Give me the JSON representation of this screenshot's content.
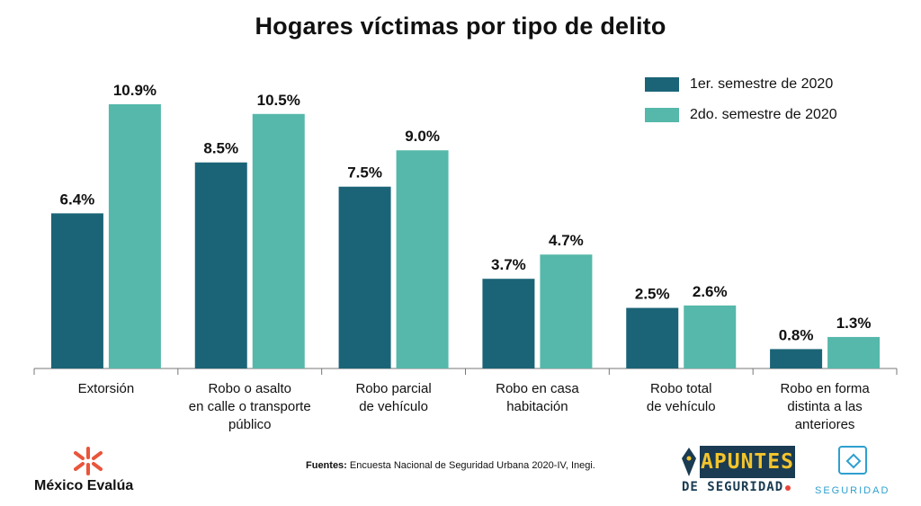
{
  "title": "Hogares víctimas por tipo de delito",
  "colors": {
    "series1": "#1b6477",
    "series2": "#55b8aa",
    "axis": "#777777",
    "text": "#111111"
  },
  "chart_data": {
    "type": "bar",
    "title": "Hogares víctimas por tipo de delito",
    "categories": [
      [
        "Extorsión"
      ],
      [
        "Robo o asalto",
        "en calle o transporte",
        "público"
      ],
      [
        "Robo parcial",
        "de vehículo"
      ],
      [
        "Robo en casa",
        "habitación"
      ],
      [
        "Robo total",
        "de vehículo"
      ],
      [
        "Robo en forma",
        "distinta a las",
        "anteriores"
      ]
    ],
    "series": [
      {
        "name": "1er. semestre de 2020",
        "values": [
          6.4,
          8.5,
          7.5,
          3.7,
          2.5,
          0.8
        ],
        "labels": [
          "6.4%",
          "8.5%",
          "7.5%",
          "3.7%",
          "2.5%",
          "0.8%"
        ]
      },
      {
        "name": "2do. semestre de 2020",
        "values": [
          10.9,
          10.5,
          9.0,
          4.7,
          2.6,
          1.3
        ],
        "labels": [
          "10.9%",
          "10.5%",
          "9.0%",
          "4.7%",
          "2.6%",
          "1.3%"
        ]
      }
    ],
    "xlabel": "",
    "ylabel": "",
    "ylim": [
      0,
      10.9
    ],
    "grid": false,
    "legend_position": "top-right"
  },
  "source": {
    "label": "Fuentes:",
    "text": "Encuesta Nacional de Seguridad Urbana 2020-IV, Inegi."
  },
  "logos": {
    "mexico_evalua": "México Evalúa",
    "apuntes_top": "APUNTES",
    "apuntes_bottom": "DE SEGURIDAD",
    "seguridad": "SEGURIDAD"
  }
}
